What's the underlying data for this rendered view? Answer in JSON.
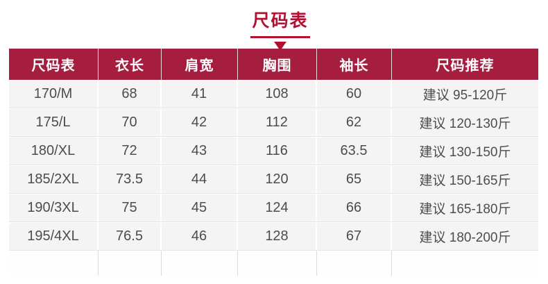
{
  "page_title": "尺码表",
  "colors": {
    "accent_red": "#b30f31",
    "header_bg": "#a51e40",
    "row_bg": "#f4f4f5",
    "header_text": "#ffffff",
    "cell_text": "#4c4c4f"
  },
  "chart_data": {
    "type": "table",
    "title": "尺码表",
    "columns": [
      "尺码表",
      "衣长",
      "肩宽",
      "胸围",
      "袖长",
      "尺码推荐"
    ],
    "rows": [
      [
        "170/M",
        "68",
        "41",
        "108",
        "60",
        "建议 95-120斤"
      ],
      [
        "175/L",
        "70",
        "42",
        "112",
        "62",
        "建议 120-130斤"
      ],
      [
        "180/XL",
        "72",
        "43",
        "116",
        "63.5",
        "建议 130-150斤"
      ],
      [
        "185/2XL",
        "73.5",
        "44",
        "120",
        "65",
        "建议 150-165斤"
      ],
      [
        "190/3XL",
        "75",
        "45",
        "124",
        "66",
        "建议 165-180斤"
      ],
      [
        "195/4XL",
        "76.5",
        "46",
        "128",
        "67",
        "建议 180-200斤"
      ]
    ]
  }
}
